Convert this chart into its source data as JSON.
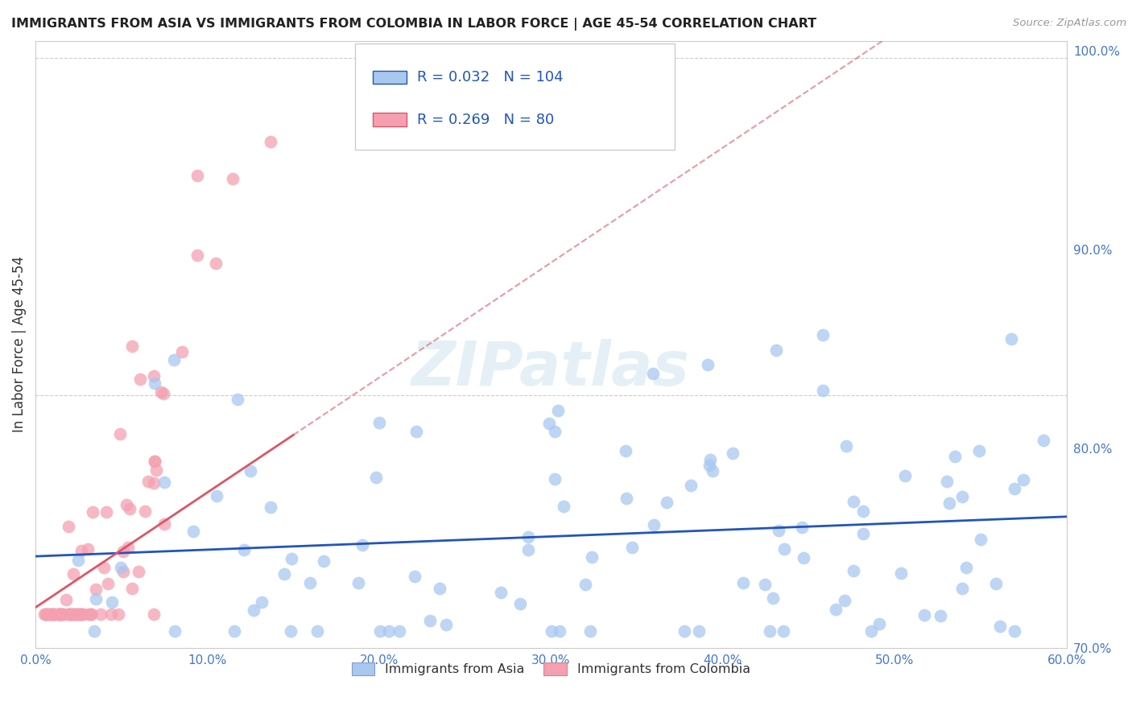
{
  "title": "IMMIGRANTS FROM ASIA VS IMMIGRANTS FROM COLOMBIA IN LABOR FORCE | AGE 45-54 CORRELATION CHART",
  "source": "Source: ZipAtlas.com",
  "ylabel": "In Labor Force | Age 45-54",
  "xlim": [
    0.0,
    0.6
  ],
  "ylim": [
    0.825,
    1.005
  ],
  "xticks": [
    0.0,
    0.1,
    0.2,
    0.3,
    0.4,
    0.5,
    0.6
  ],
  "xticklabels": [
    "0.0%",
    "10.0%",
    "20.0%",
    "30.0%",
    "40.0%",
    "50.0%",
    "60.0%"
  ],
  "yticks": [
    0.84,
    0.86,
    0.88,
    0.9,
    0.92,
    0.94,
    0.96,
    0.98,
    1.0
  ],
  "yticks_right": [
    0.7,
    0.8,
    0.9,
    1.0
  ],
  "yticklabels_right": [
    "70.0%",
    "80.0%",
    "90.0%",
    "100.0%"
  ],
  "legend_asia": "Immigrants from Asia",
  "legend_colombia": "Immigrants from Colombia",
  "R_asia": "0.032",
  "N_asia": "104",
  "R_colombia": "0.269",
  "N_colombia": "80",
  "color_asia": "#a8c8f0",
  "color_colombia": "#f4a0b0",
  "line_color_asia": "#2255bb",
  "line_color_colombia": "#dd5566",
  "watermark": "ZIPatlas"
}
